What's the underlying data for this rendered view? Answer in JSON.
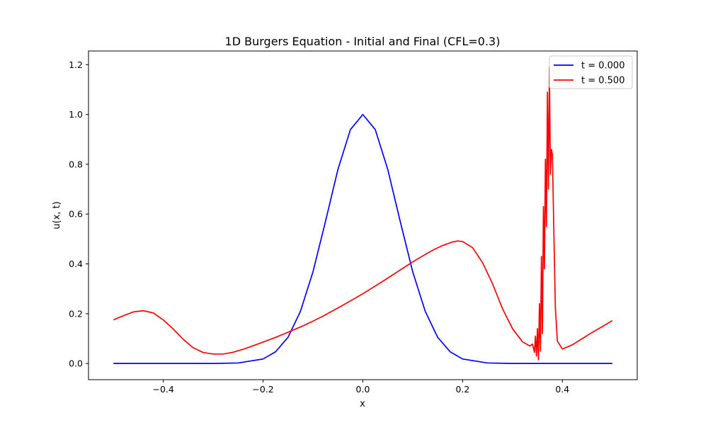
{
  "chart_data": {
    "type": "line",
    "title": "1D Burgers Equation - Initial and Final (CFL=0.3)",
    "xlabel": "x",
    "ylabel": "u(x, t)",
    "xlim": [
      -0.55,
      0.55
    ],
    "ylim": [
      -0.065,
      1.255
    ],
    "xticks": [
      -0.4,
      -0.2,
      0.0,
      0.2,
      0.4
    ],
    "xtick_labels": [
      "−0.4",
      "−0.2",
      "0.0",
      "0.2",
      "0.4"
    ],
    "yticks": [
      0.0,
      0.2,
      0.4,
      0.6,
      0.8,
      1.0,
      1.2
    ],
    "ytick_labels": [
      "0.0",
      "0.2",
      "0.4",
      "0.6",
      "0.8",
      "1.0",
      "1.2"
    ],
    "grid": false,
    "legend_position": "top-right",
    "series": [
      {
        "name": "t = 0.000",
        "color": "#0000ff",
        "x": [
          -0.5,
          -0.3,
          -0.25,
          -0.2,
          -0.175,
          -0.15,
          -0.125,
          -0.1,
          -0.075,
          -0.05,
          -0.025,
          0.0,
          0.025,
          0.05,
          0.075,
          0.1,
          0.125,
          0.15,
          0.175,
          0.2,
          0.25,
          0.3,
          0.5
        ],
        "y": [
          0.0,
          0.0,
          0.002,
          0.018,
          0.047,
          0.105,
          0.21,
          0.368,
          0.57,
          0.779,
          0.939,
          1.0,
          0.939,
          0.779,
          0.57,
          0.368,
          0.21,
          0.105,
          0.047,
          0.018,
          0.002,
          0.0,
          0.0
        ]
      },
      {
        "name": "t = 0.500",
        "color": "#ff0000",
        "x": [
          -0.5,
          -0.48,
          -0.46,
          -0.44,
          -0.42,
          -0.4,
          -0.38,
          -0.36,
          -0.34,
          -0.32,
          -0.3,
          -0.28,
          -0.26,
          -0.24,
          -0.22,
          -0.2,
          -0.18,
          -0.16,
          -0.14,
          -0.12,
          -0.1,
          -0.08,
          -0.06,
          -0.04,
          -0.02,
          0.0,
          0.02,
          0.04,
          0.06,
          0.08,
          0.1,
          0.12,
          0.14,
          0.16,
          0.18,
          0.19,
          0.2,
          0.22,
          0.24,
          0.26,
          0.28,
          0.3,
          0.32,
          0.335,
          0.34,
          0.344,
          0.346,
          0.348,
          0.35,
          0.352,
          0.354,
          0.356,
          0.358,
          0.36,
          0.362,
          0.364,
          0.366,
          0.368,
          0.37,
          0.372,
          0.374,
          0.376,
          0.378,
          0.38,
          0.383,
          0.386,
          0.39,
          0.4,
          0.42,
          0.44,
          0.46,
          0.48,
          0.5
        ],
        "y": [
          0.175,
          0.192,
          0.207,
          0.212,
          0.203,
          0.175,
          0.138,
          0.097,
          0.063,
          0.044,
          0.038,
          0.038,
          0.045,
          0.057,
          0.071,
          0.086,
          0.101,
          0.117,
          0.134,
          0.151,
          0.17,
          0.19,
          0.212,
          0.234,
          0.257,
          0.28,
          0.305,
          0.33,
          0.356,
          0.382,
          0.408,
          0.432,
          0.455,
          0.474,
          0.488,
          0.492,
          0.49,
          0.465,
          0.405,
          0.32,
          0.22,
          0.14,
          0.087,
          0.07,
          0.078,
          0.045,
          0.11,
          0.03,
          0.14,
          0.015,
          0.24,
          0.05,
          0.43,
          0.12,
          0.63,
          0.38,
          0.82,
          0.55,
          1.09,
          0.7,
          1.19,
          0.76,
          0.86,
          0.84,
          0.52,
          0.22,
          0.09,
          0.058,
          0.075,
          0.1,
          0.125,
          0.148,
          0.172
        ]
      }
    ]
  }
}
